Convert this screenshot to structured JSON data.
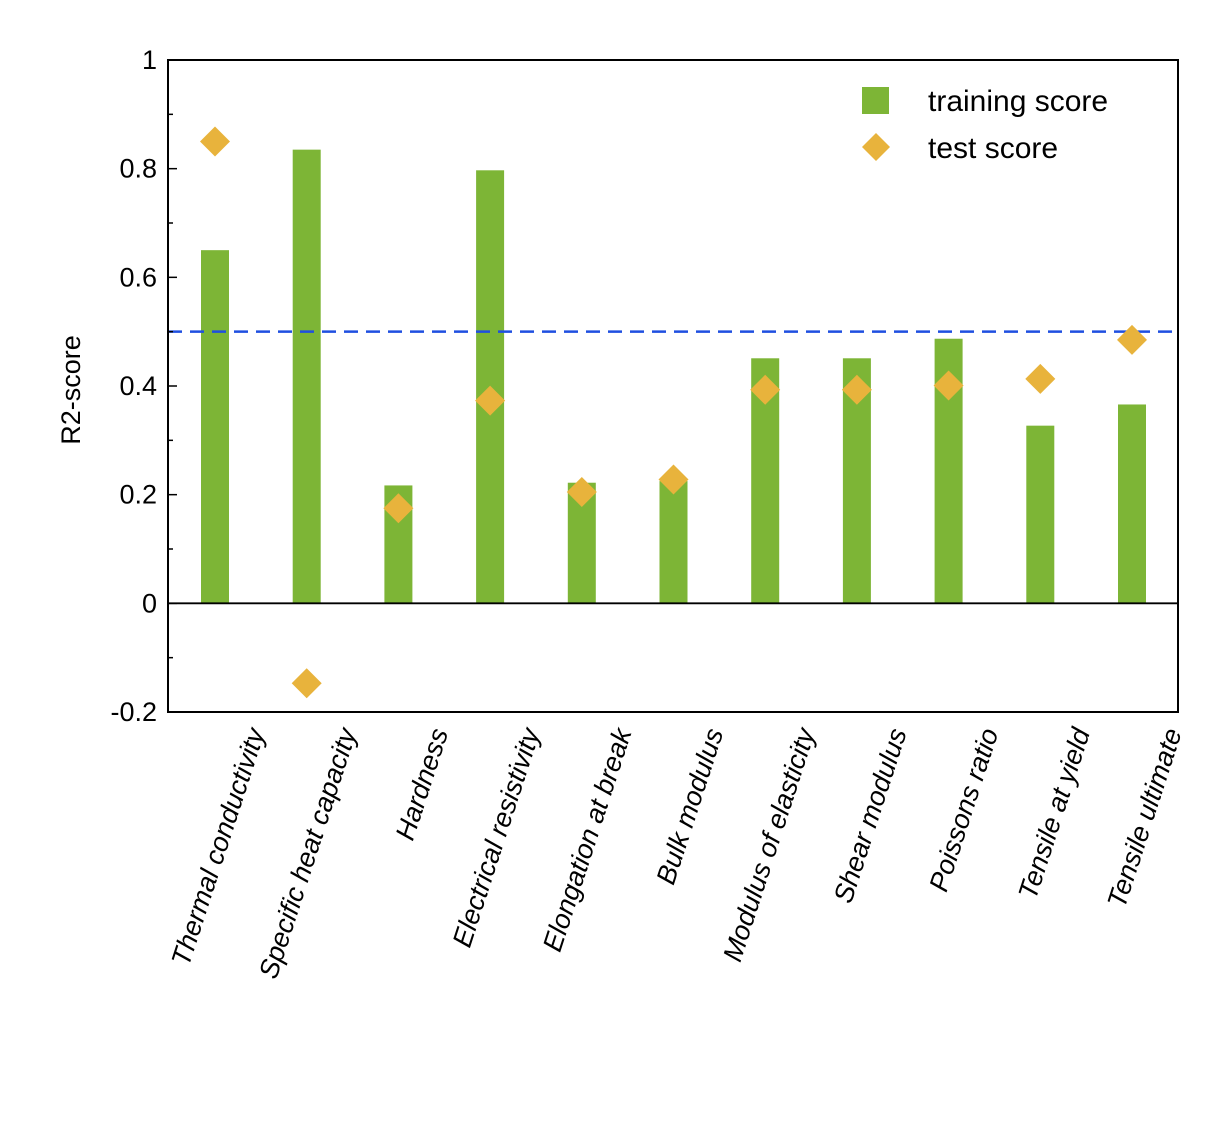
{
  "chart_data": {
    "type": "bar",
    "title": "",
    "xlabel": "",
    "ylabel": "R2-score",
    "ylim": [
      -0.2,
      1.0
    ],
    "yticks": [
      -0.2,
      0,
      0.2,
      0.4,
      0.6,
      0.8,
      1
    ],
    "ytick_labels": [
      "-0.2",
      "0",
      "0.2",
      "0.4",
      "0.6",
      "0.8",
      "1"
    ],
    "categories": [
      "Thermal conductivity",
      "Specific heat capacity",
      "Hardness",
      "Electrical resistivity",
      "Elongation at break",
      "Bulk modulus",
      "Modulus of elasticity",
      "Shear modulus",
      "Poissons ratio",
      "Tensile at yield",
      "Tensile  ultimate"
    ],
    "series": [
      {
        "name": "training score",
        "kind": "bar",
        "color": "#7db536",
        "values": [
          0.65,
          0.835,
          0.217,
          0.797,
          0.222,
          0.225,
          0.451,
          0.451,
          0.487,
          0.327,
          0.366
        ]
      },
      {
        "name": "test score",
        "kind": "marker",
        "marker": "diamond",
        "color": "#e8b33c",
        "values": [
          0.85,
          -0.147,
          0.175,
          0.373,
          0.205,
          0.228,
          0.393,
          0.393,
          0.401,
          0.413,
          0.485
        ]
      }
    ],
    "reference_line": {
      "y": 0.5,
      "style": "dashed",
      "color": "#1f4fe0"
    },
    "zero_line": {
      "y": 0,
      "color": "#000000"
    },
    "grid": false,
    "legend_position": "top-right"
  }
}
